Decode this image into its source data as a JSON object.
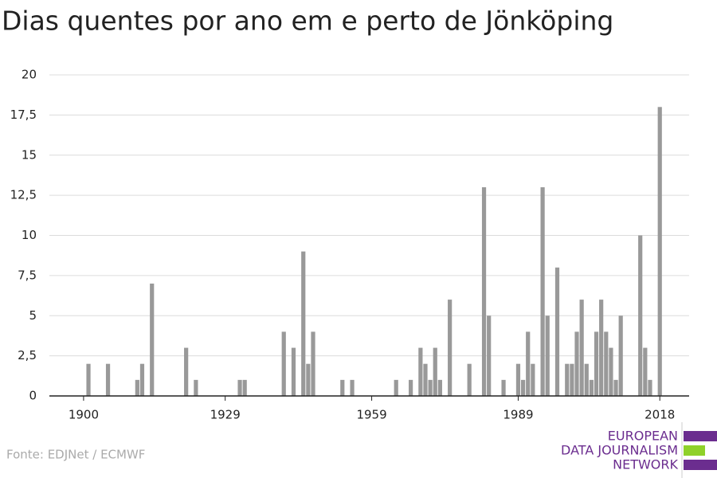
{
  "chart_data": {
    "type": "bar",
    "title": "Dias quentes por ano em e perto de Jönköping",
    "x": [
      1901,
      1905,
      1911,
      1912,
      1914,
      1921,
      1923,
      1932,
      1933,
      1941,
      1943,
      1945,
      1946,
      1947,
      1953,
      1955,
      1964,
      1967,
      1969,
      1970,
      1971,
      1972,
      1973,
      1975,
      1979,
      1982,
      1983,
      1986,
      1989,
      1990,
      1991,
      1992,
      1994,
      1995,
      1997,
      1999,
      2000,
      2001,
      2002,
      2003,
      2004,
      2005,
      2006,
      2007,
      2008,
      2009,
      2010,
      2014,
      2015,
      2016,
      2018
    ],
    "values": [
      2,
      2,
      1,
      2,
      7,
      3,
      1,
      1,
      1,
      4,
      3,
      9,
      2,
      4,
      1,
      1,
      1,
      1,
      3,
      2,
      1,
      3,
      1,
      6,
      2,
      13,
      5,
      1,
      2,
      1,
      4,
      2,
      13,
      5,
      8,
      2,
      2,
      4,
      6,
      2,
      1,
      4,
      6,
      4,
      3,
      1,
      5,
      10,
      3,
      1,
      18
    ],
    "color": "#999999",
    "xlim": [
      1893,
      2024
    ],
    "xticks": [
      1900,
      1929,
      1959,
      1989,
      2018
    ],
    "ylim": [
      0,
      20
    ],
    "yticks": [
      0,
      {
        "value": 2.5,
        "label": "2,5"
      },
      5,
      {
        "value": 7.5,
        "label": "7,5"
      },
      10,
      {
        "value": 12.5,
        "label": "12,5"
      },
      15,
      {
        "value": 17.5,
        "label": "17,5"
      },
      20
    ],
    "grid": true,
    "source": "Fonte: EDJNet / ECMWF",
    "logo": [
      "EUROPEAN",
      "DATA JOURNALISM",
      "NETWORK"
    ]
  }
}
